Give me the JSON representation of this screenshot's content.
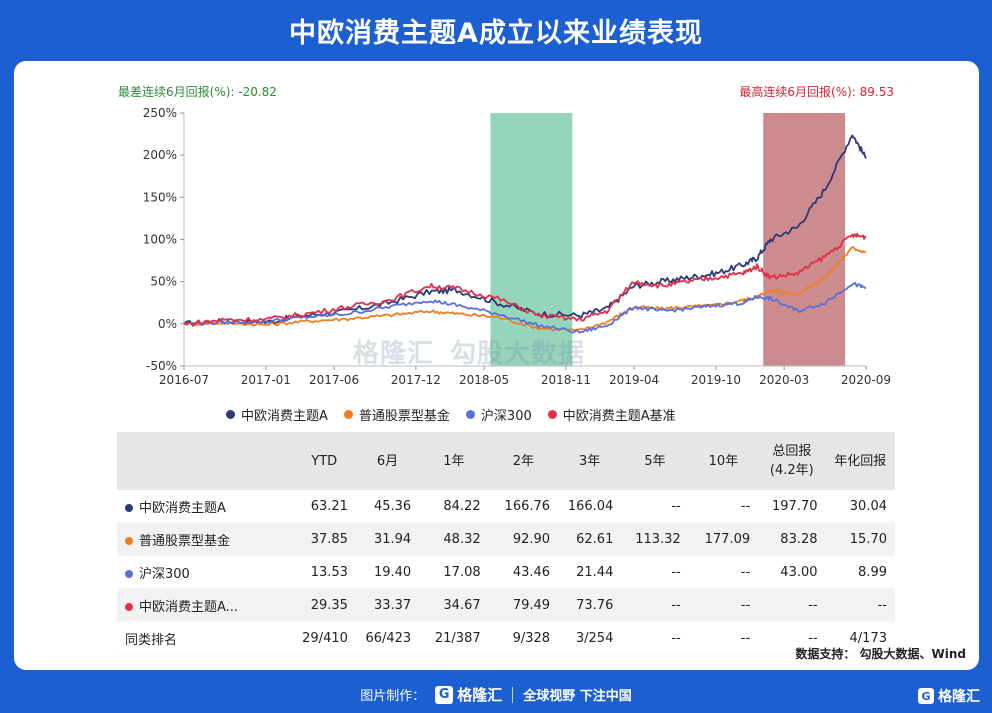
{
  "title": "中欧消费主题A成立以来业绩表现",
  "annotations": {
    "worst_label": "最差连续6月回报(%): -20.82",
    "best_label": "最高连续6月回报(%): 89.53"
  },
  "watermark": {
    "brand": "格隆汇",
    "brand2": "勾股大数据"
  },
  "colors": {
    "fund": "#2c3a78",
    "stock_funds": "#f07d22",
    "csi300": "#5b6fd6",
    "benchmark": "#e0304a",
    "green_band": "#8fd3b8",
    "red_band": "#c98688"
  },
  "chart_data": {
    "type": "line",
    "xlabel": "",
    "ylabel": "",
    "ylim": [
      -50,
      250
    ],
    "yticks": [
      -50,
      0,
      50,
      100,
      150,
      200,
      250
    ],
    "ytick_labels": [
      "-50%",
      "0%",
      "50%",
      "100%",
      "150%",
      "200%",
      "250%"
    ],
    "xlim": [
      "2016-07",
      "2020-09"
    ],
    "xticks": [
      "2016-07",
      "2017-01",
      "2017-06",
      "2017-12",
      "2018-05",
      "2018-11",
      "2019-04",
      "2019-10",
      "2020-03",
      "2020-09"
    ],
    "bands": [
      {
        "from": "2018-05-15",
        "to": "2018-11-15",
        "color": "#8fd3b8"
      },
      {
        "from": "2020-01-15",
        "to": "2020-07-15",
        "color": "#c98688"
      }
    ],
    "x": [
      "2016-07",
      "2016-10",
      "2017-01",
      "2017-04",
      "2017-07",
      "2017-10",
      "2018-01",
      "2018-03",
      "2018-06",
      "2018-09",
      "2018-12",
      "2019-02",
      "2019-04",
      "2019-06",
      "2019-08",
      "2019-10",
      "2019-12",
      "2020-01",
      "2020-02",
      "2020-04",
      "2020-06",
      "2020-08",
      "2020-09"
    ],
    "series": [
      {
        "name": "中欧消费主题A",
        "color": "#2c3a78",
        "values": [
          0,
          3,
          2,
          10,
          15,
          25,
          38,
          40,
          25,
          12,
          10,
          18,
          45,
          50,
          55,
          60,
          70,
          78,
          100,
          115,
          160,
          225,
          196
        ]
      },
      {
        "name": "普通股票型基金",
        "color": "#f07d22",
        "values": [
          0,
          1,
          -1,
          3,
          6,
          10,
          15,
          12,
          8,
          -5,
          -8,
          2,
          20,
          18,
          20,
          22,
          28,
          32,
          40,
          35,
          55,
          90,
          85
        ]
      },
      {
        "name": "沪深300",
        "color": "#5b6fd6",
        "values": [
          0,
          2,
          3,
          8,
          12,
          20,
          28,
          22,
          12,
          -2,
          -10,
          -2,
          20,
          15,
          18,
          22,
          25,
          32,
          30,
          15,
          25,
          48,
          42
        ]
      },
      {
        "name": "中欧消费主题A基准",
        "color": "#e0304a",
        "values": [
          0,
          5,
          5,
          12,
          20,
          28,
          45,
          42,
          30,
          10,
          5,
          15,
          50,
          45,
          50,
          55,
          60,
          68,
          55,
          60,
          80,
          105,
          103
        ]
      }
    ]
  },
  "table": {
    "headers": [
      "",
      "YTD",
      "6月",
      "1年",
      "2年",
      "3年",
      "5年",
      "10年",
      "总回报\n(4.2年)",
      "年化回报"
    ],
    "header_total_line1": "总回报",
    "header_total_line2": "(4.2年)",
    "rows": [
      {
        "name": "中欧消费主题A",
        "color": "#2c3a78",
        "cells": [
          "63.21",
          "45.36",
          "84.22",
          "166.76",
          "166.04",
          "--",
          "--",
          "197.70",
          "30.04"
        ]
      },
      {
        "name": "普通股票型基金",
        "color": "#f07d22",
        "cells": [
          "37.85",
          "31.94",
          "48.32",
          "92.90",
          "62.61",
          "113.32",
          "177.09",
          "83.28",
          "15.70"
        ]
      },
      {
        "name": "沪深300",
        "color": "#5b6fd6",
        "cells": [
          "13.53",
          "19.40",
          "17.08",
          "43.46",
          "21.44",
          "--",
          "--",
          "43.00",
          "8.99"
        ]
      },
      {
        "name": "中欧消费主题A...",
        "color": "#e0304a",
        "cells": [
          "29.35",
          "33.37",
          "34.67",
          "79.49",
          "73.76",
          "--",
          "--",
          "--",
          "--"
        ]
      },
      {
        "name": "同类排名",
        "color": "",
        "cells": [
          "29/410",
          "66/423",
          "21/387",
          "9/328",
          "3/254",
          "--",
          "--",
          "--",
          "4/173"
        ]
      }
    ]
  },
  "source": "数据支持：  勾股大数据、Wind",
  "footer": {
    "made_by": "图片制作：",
    "brand": "格隆汇",
    "slogan": "全球视野 下注中国",
    "corner_brand": "格隆汇",
    "logo_letter": "G"
  }
}
